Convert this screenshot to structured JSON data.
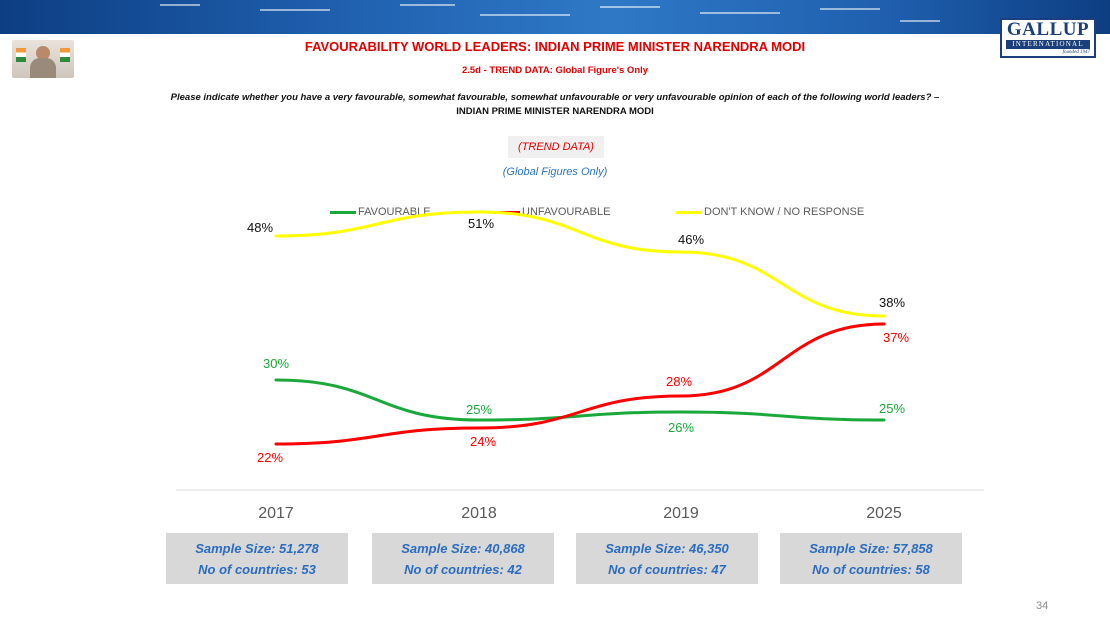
{
  "header": {
    "title": "FAVOURABILITY WORLD LEADERS: INDIAN PRIME MINISTER NARENDRA MODI",
    "subtitle": "2.5d - TREND DATA: Global Figure's Only",
    "question": "Please indicate whether you have a very favourable, somewhat favourable, somewhat unfavourable or very unfavourable opinion of each of the following world leaders? –",
    "leader": "INDIAN PRIME MINISTER NARENDRA MODI",
    "trend_label": "(TREND DATA)",
    "global_label": "(Global Figures Only)"
  },
  "logo": {
    "name": "GALLUP",
    "sub": "INTERNATIONAL",
    "founded": "founded 1947"
  },
  "chart_data": {
    "type": "line",
    "categories": [
      "2017",
      "2018",
      "2019",
      "2025"
    ],
    "ylim": [
      0,
      60
    ],
    "series": [
      {
        "name": "FAVOURABLE",
        "color": "#1aa83b",
        "values": [
          30,
          25,
          26,
          25
        ],
        "labels": [
          "30%",
          "25%",
          "26%",
          "25%"
        ]
      },
      {
        "name": "UNFAVOURABLE",
        "color": "#ff0000",
        "values": [
          22,
          24,
          28,
          37
        ],
        "labels": [
          "22%",
          "24%",
          "28%",
          "37%"
        ]
      },
      {
        "name": "DON'T KNOW / NO RESPONSE",
        "color": "#ffff00",
        "values": [
          48,
          51,
          46,
          38
        ],
        "labels": [
          "48%",
          "51%",
          "46%",
          "38%"
        ]
      }
    ],
    "title": "",
    "xlabel": "",
    "ylabel": ""
  },
  "samples": [
    {
      "size": "Sample Size: 51,278",
      "countries": "No of countries:  53"
    },
    {
      "size": "Sample Size: 40,868",
      "countries": "No of countries: 42"
    },
    {
      "size": "Sample Size: 46,350",
      "countries": "No of countries: 47"
    },
    {
      "size": "Sample Size: 57,858",
      "countries": "No of countries: 58"
    }
  ],
  "page_number": "34",
  "colors": {
    "title_red": "#e00000",
    "sample_blue": "#2a6cc0",
    "banner_blue": "#1f5fae"
  }
}
